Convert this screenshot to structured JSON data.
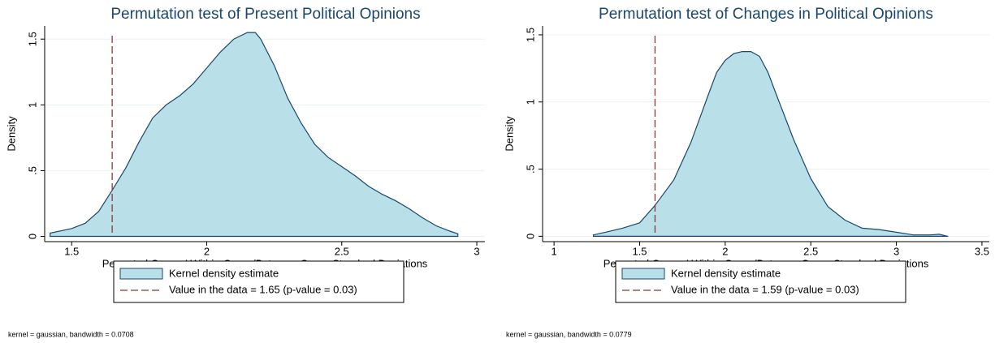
{
  "chart_data": [
    {
      "type": "density",
      "title": "Permutation test of Present Political Opinions",
      "xlabel": "Permuted Groups' Within-Group/Between-Group Standard Deviations",
      "ylabel": "Density",
      "xlim": [
        1.4,
        3.03
      ],
      "ylim": [
        -0.04,
        1.6
      ],
      "xticks": [
        1.5,
        2,
        2.5,
        3
      ],
      "yticks": [
        0,
        {
          "value": 0.5,
          "label": ".5"
        },
        1,
        1.5
      ],
      "grid": true,
      "x": [
        1.42,
        1.5,
        1.55,
        1.6,
        1.65,
        1.7,
        1.75,
        1.8,
        1.85,
        1.9,
        1.95,
        2.0,
        2.05,
        2.1,
        2.15,
        2.18,
        2.2,
        2.25,
        2.3,
        2.35,
        2.4,
        2.45,
        2.5,
        2.55,
        2.6,
        2.65,
        2.7,
        2.75,
        2.8,
        2.85,
        2.9,
        2.93
      ],
      "series": [
        {
          "name": "Kernel density estimate",
          "color": "#b9dfe9",
          "line_color": "#1a476f",
          "values": [
            0.025,
            0.06,
            0.1,
            0.19,
            0.35,
            0.52,
            0.72,
            0.9,
            1.0,
            1.07,
            1.16,
            1.28,
            1.4,
            1.5,
            1.55,
            1.55,
            1.5,
            1.3,
            1.05,
            0.86,
            0.7,
            0.6,
            0.53,
            0.46,
            0.38,
            0.32,
            0.27,
            0.21,
            0.14,
            0.08,
            0.04,
            0.02
          ]
        }
      ],
      "reference_line": {
        "name": "Value in the data = 1.65 (p-value = 0.03)",
        "value": 1.65,
        "color": "#90353b"
      },
      "note": "kernel = gaussian, bandwidth = 0.0708"
    },
    {
      "type": "density",
      "title": "Permutation test of Changes in Political Opinions",
      "xlabel": "Permuted Groups' Within-Group/Between-Group Standard Deviations",
      "ylabel": "Density",
      "xlim": [
        0.933,
        3.543
      ],
      "ylim": [
        -0.04,
        1.566
      ],
      "xticks": [
        1,
        1.5,
        2,
        2.5,
        3,
        3.5
      ],
      "yticks": [
        0,
        {
          "value": 0.5,
          "label": ".5"
        },
        1,
        1.5
      ],
      "grid": true,
      "x": [
        1.23,
        1.3,
        1.4,
        1.5,
        1.59,
        1.7,
        1.8,
        1.9,
        1.95,
        2.0,
        2.05,
        2.1,
        2.15,
        2.2,
        2.25,
        2.3,
        2.4,
        2.5,
        2.6,
        2.7,
        2.8,
        2.9,
        3.0,
        3.1,
        3.2,
        3.25,
        3.3
      ],
      "series": [
        {
          "name": "Kernel density estimate",
          "color": "#b9dfe9",
          "line_color": "#1a476f",
          "values": [
            0.01,
            0.03,
            0.06,
            0.1,
            0.23,
            0.42,
            0.7,
            1.05,
            1.22,
            1.31,
            1.36,
            1.375,
            1.375,
            1.34,
            1.22,
            1.05,
            0.72,
            0.43,
            0.22,
            0.12,
            0.06,
            0.05,
            0.03,
            0.01,
            0.01,
            0.015,
            0.0
          ]
        }
      ],
      "reference_line": {
        "name": "Value in the data = 1.59 (p-value = 0.03)",
        "value": 1.59,
        "color": "#90353b"
      },
      "note": "kernel = gaussian, bandwidth = 0.0779"
    }
  ]
}
